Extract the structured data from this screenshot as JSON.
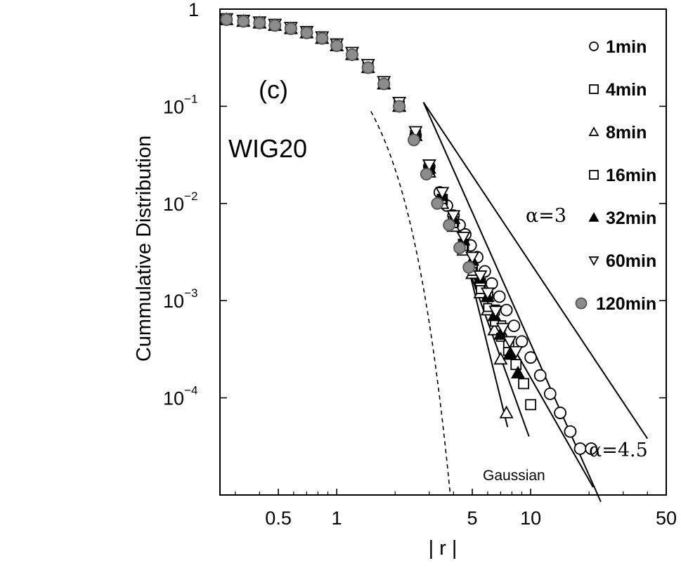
{
  "chart_data": {
    "type": "scatter",
    "xscale": "log",
    "yscale": "log",
    "xlim": [
      0.25,
      50
    ],
    "ylim": [
      1e-05,
      1
    ],
    "xlabel": "| r |",
    "ylabel": "Cummulative Distribution",
    "panel_label": "(c)",
    "index_label": "WIG20",
    "grid": false,
    "legend_position": "right",
    "x_ticks": [
      {
        "value": 0.5,
        "label": "0.5"
      },
      {
        "value": 1,
        "label": "1"
      },
      {
        "value": 5,
        "label": "5"
      },
      {
        "value": 10,
        "label": "10"
      },
      {
        "value": 50,
        "label": "50"
      }
    ],
    "y_ticks": [
      {
        "value": 1,
        "base": "1",
        "exp": ""
      },
      {
        "value": 0.1,
        "base": "10",
        "exp": "−1"
      },
      {
        "value": 0.01,
        "base": "10",
        "exp": "−2"
      },
      {
        "value": 0.001,
        "base": "10",
        "exp": "−3"
      },
      {
        "value": 0.0001,
        "base": "10",
        "exp": "−4"
      }
    ],
    "series": [
      {
        "name": "1min",
        "marker": "circle",
        "fill": "none",
        "size": 16,
        "x": [
          0.27,
          0.33,
          0.4,
          0.48,
          0.58,
          0.7,
          0.84,
          1.0,
          1.2,
          1.45,
          1.75,
          2.1,
          2.55,
          3.0,
          3.4,
          3.7,
          4.0,
          4.3,
          4.6,
          4.9,
          5.3,
          5.8,
          6.3,
          6.9,
          7.5,
          8.2,
          9.0,
          10.0,
          11.2,
          12.6,
          14.2,
          16.0,
          18.0,
          20.5
        ],
        "y": [
          0.78,
          0.75,
          0.72,
          0.68,
          0.63,
          0.57,
          0.5,
          0.42,
          0.34,
          0.25,
          0.17,
          0.1,
          0.05,
          0.024,
          0.013,
          0.0095,
          0.0075,
          0.006,
          0.0048,
          0.0037,
          0.0028,
          0.002,
          0.0015,
          0.0011,
          0.0008,
          0.00055,
          0.00038,
          0.00026,
          0.00017,
          0.00011,
          7e-05,
          4.5e-05,
          3e-05,
          3e-05
        ]
      },
      {
        "name": "4min",
        "marker": "square",
        "fill": "none",
        "size": 14,
        "x": [
          0.27,
          0.33,
          0.4,
          0.48,
          0.58,
          0.7,
          0.84,
          1.0,
          1.2,
          1.45,
          1.75,
          2.1,
          2.55,
          3.0,
          3.5,
          4.0,
          4.5,
          5.0,
          5.5,
          6.0,
          6.5,
          7.0,
          7.7,
          8.4,
          9.2,
          10.0
        ],
        "y": [
          0.78,
          0.75,
          0.72,
          0.68,
          0.63,
          0.57,
          0.5,
          0.42,
          0.34,
          0.25,
          0.17,
          0.1,
          0.05,
          0.022,
          0.011,
          0.0065,
          0.0038,
          0.0022,
          0.0015,
          0.0011,
          0.0008,
          0.00055,
          0.00035,
          0.00022,
          0.00014,
          8.5e-05
        ]
      },
      {
        "name": "8min",
        "marker": "triangle-up",
        "fill": "none",
        "size": 17,
        "x": [
          0.27,
          0.33,
          0.4,
          0.48,
          0.58,
          0.7,
          0.84,
          1.0,
          1.2,
          1.45,
          1.75,
          2.1,
          2.55,
          3.0,
          3.5,
          4.0,
          4.5,
          5.0,
          5.5,
          6.0,
          6.5,
          7.0,
          7.5
        ],
        "y": [
          0.78,
          0.75,
          0.72,
          0.68,
          0.63,
          0.57,
          0.5,
          0.42,
          0.34,
          0.25,
          0.17,
          0.1,
          0.05,
          0.021,
          0.01,
          0.0058,
          0.0033,
          0.0019,
          0.0012,
          0.0008,
          0.0005,
          0.00025,
          7e-05
        ]
      },
      {
        "name": "16min",
        "marker": "square",
        "fill": "none",
        "size": 11,
        "x": [
          0.27,
          0.33,
          0.4,
          0.48,
          0.58,
          0.7,
          0.84,
          1.0,
          1.2,
          1.45,
          1.75,
          2.1,
          2.55,
          3.0,
          3.5,
          4.0,
          4.5,
          5.0,
          5.5,
          6.0,
          6.5,
          7.0,
          7.6
        ],
        "y": [
          0.78,
          0.75,
          0.72,
          0.68,
          0.63,
          0.57,
          0.5,
          0.42,
          0.34,
          0.25,
          0.17,
          0.1,
          0.05,
          0.022,
          0.011,
          0.0062,
          0.0036,
          0.002,
          0.0013,
          0.00085,
          0.0006,
          0.00042,
          0.0003
        ]
      },
      {
        "name": "32min",
        "marker": "triangle-up",
        "fill": "#000000",
        "size": 17,
        "x": [
          0.27,
          0.33,
          0.4,
          0.48,
          0.58,
          0.7,
          0.84,
          1.0,
          1.2,
          1.45,
          1.75,
          2.1,
          2.55,
          3.0,
          3.5,
          4.0,
          4.5,
          5.0,
          5.5,
          6.0,
          6.5,
          7.0,
          7.8,
          8.6
        ],
        "y": [
          0.78,
          0.75,
          0.72,
          0.68,
          0.63,
          0.57,
          0.5,
          0.42,
          0.34,
          0.25,
          0.17,
          0.1,
          0.05,
          0.023,
          0.012,
          0.007,
          0.0042,
          0.0026,
          0.0017,
          0.0011,
          0.0007,
          0.00045,
          0.00028,
          0.00018
        ]
      },
      {
        "name": "60min",
        "marker": "triangle-down",
        "fill": "none",
        "size": 17,
        "x": [
          0.27,
          0.33,
          0.4,
          0.48,
          0.58,
          0.7,
          0.84,
          1.0,
          1.2,
          1.45,
          1.75,
          2.1,
          2.55,
          3.0,
          3.5,
          4.0,
          4.5,
          5.0,
          5.5,
          6.0,
          6.6,
          7.2,
          7.8,
          8.4
        ],
        "y": [
          0.8,
          0.77,
          0.74,
          0.7,
          0.65,
          0.59,
          0.52,
          0.44,
          0.36,
          0.27,
          0.18,
          0.11,
          0.055,
          0.025,
          0.013,
          0.0075,
          0.0045,
          0.0028,
          0.0018,
          0.0012,
          0.00078,
          0.00052,
          0.00038,
          0.0003
        ]
      },
      {
        "name": "120min",
        "marker": "circle",
        "fill": "#8c8c8c",
        "size": 16,
        "x": [
          0.27,
          0.33,
          0.4,
          0.48,
          0.58,
          0.7,
          0.84,
          1.0,
          1.2,
          1.45,
          1.75,
          2.1,
          2.5,
          2.9,
          3.3,
          3.8,
          4.3,
          4.8
        ],
        "y": [
          0.78,
          0.75,
          0.72,
          0.68,
          0.63,
          0.57,
          0.5,
          0.42,
          0.34,
          0.25,
          0.17,
          0.1,
          0.045,
          0.02,
          0.01,
          0.006,
          0.0035,
          0.0022
        ]
      }
    ],
    "lines": [
      {
        "type": "power-law",
        "label": "α=3",
        "alpha": 3,
        "x": [
          2.8,
          40
        ],
        "y": [
          0.11,
          3.8e-05
        ]
      },
      {
        "type": "power-law",
        "label": "α=4.5",
        "alpha": 4.5,
        "x": [
          2.8,
          23
        ],
        "y": [
          0.11,
          8.5e-06
        ]
      },
      {
        "type": "fit",
        "label": "",
        "x": [
          4.8,
          21
        ],
        "y": [
          0.0021,
          1.2e-05
        ]
      },
      {
        "type": "fit",
        "label": "",
        "x": [
          4.8,
          9.8
        ],
        "y": [
          0.0021,
          4e-05
        ]
      },
      {
        "type": "fit",
        "label": "",
        "x": [
          4.8,
          7.6
        ],
        "y": [
          0.0021,
          5e-05
        ]
      },
      {
        "type": "gaussian",
        "label": "Gaussian",
        "dashed": true
      }
    ]
  }
}
